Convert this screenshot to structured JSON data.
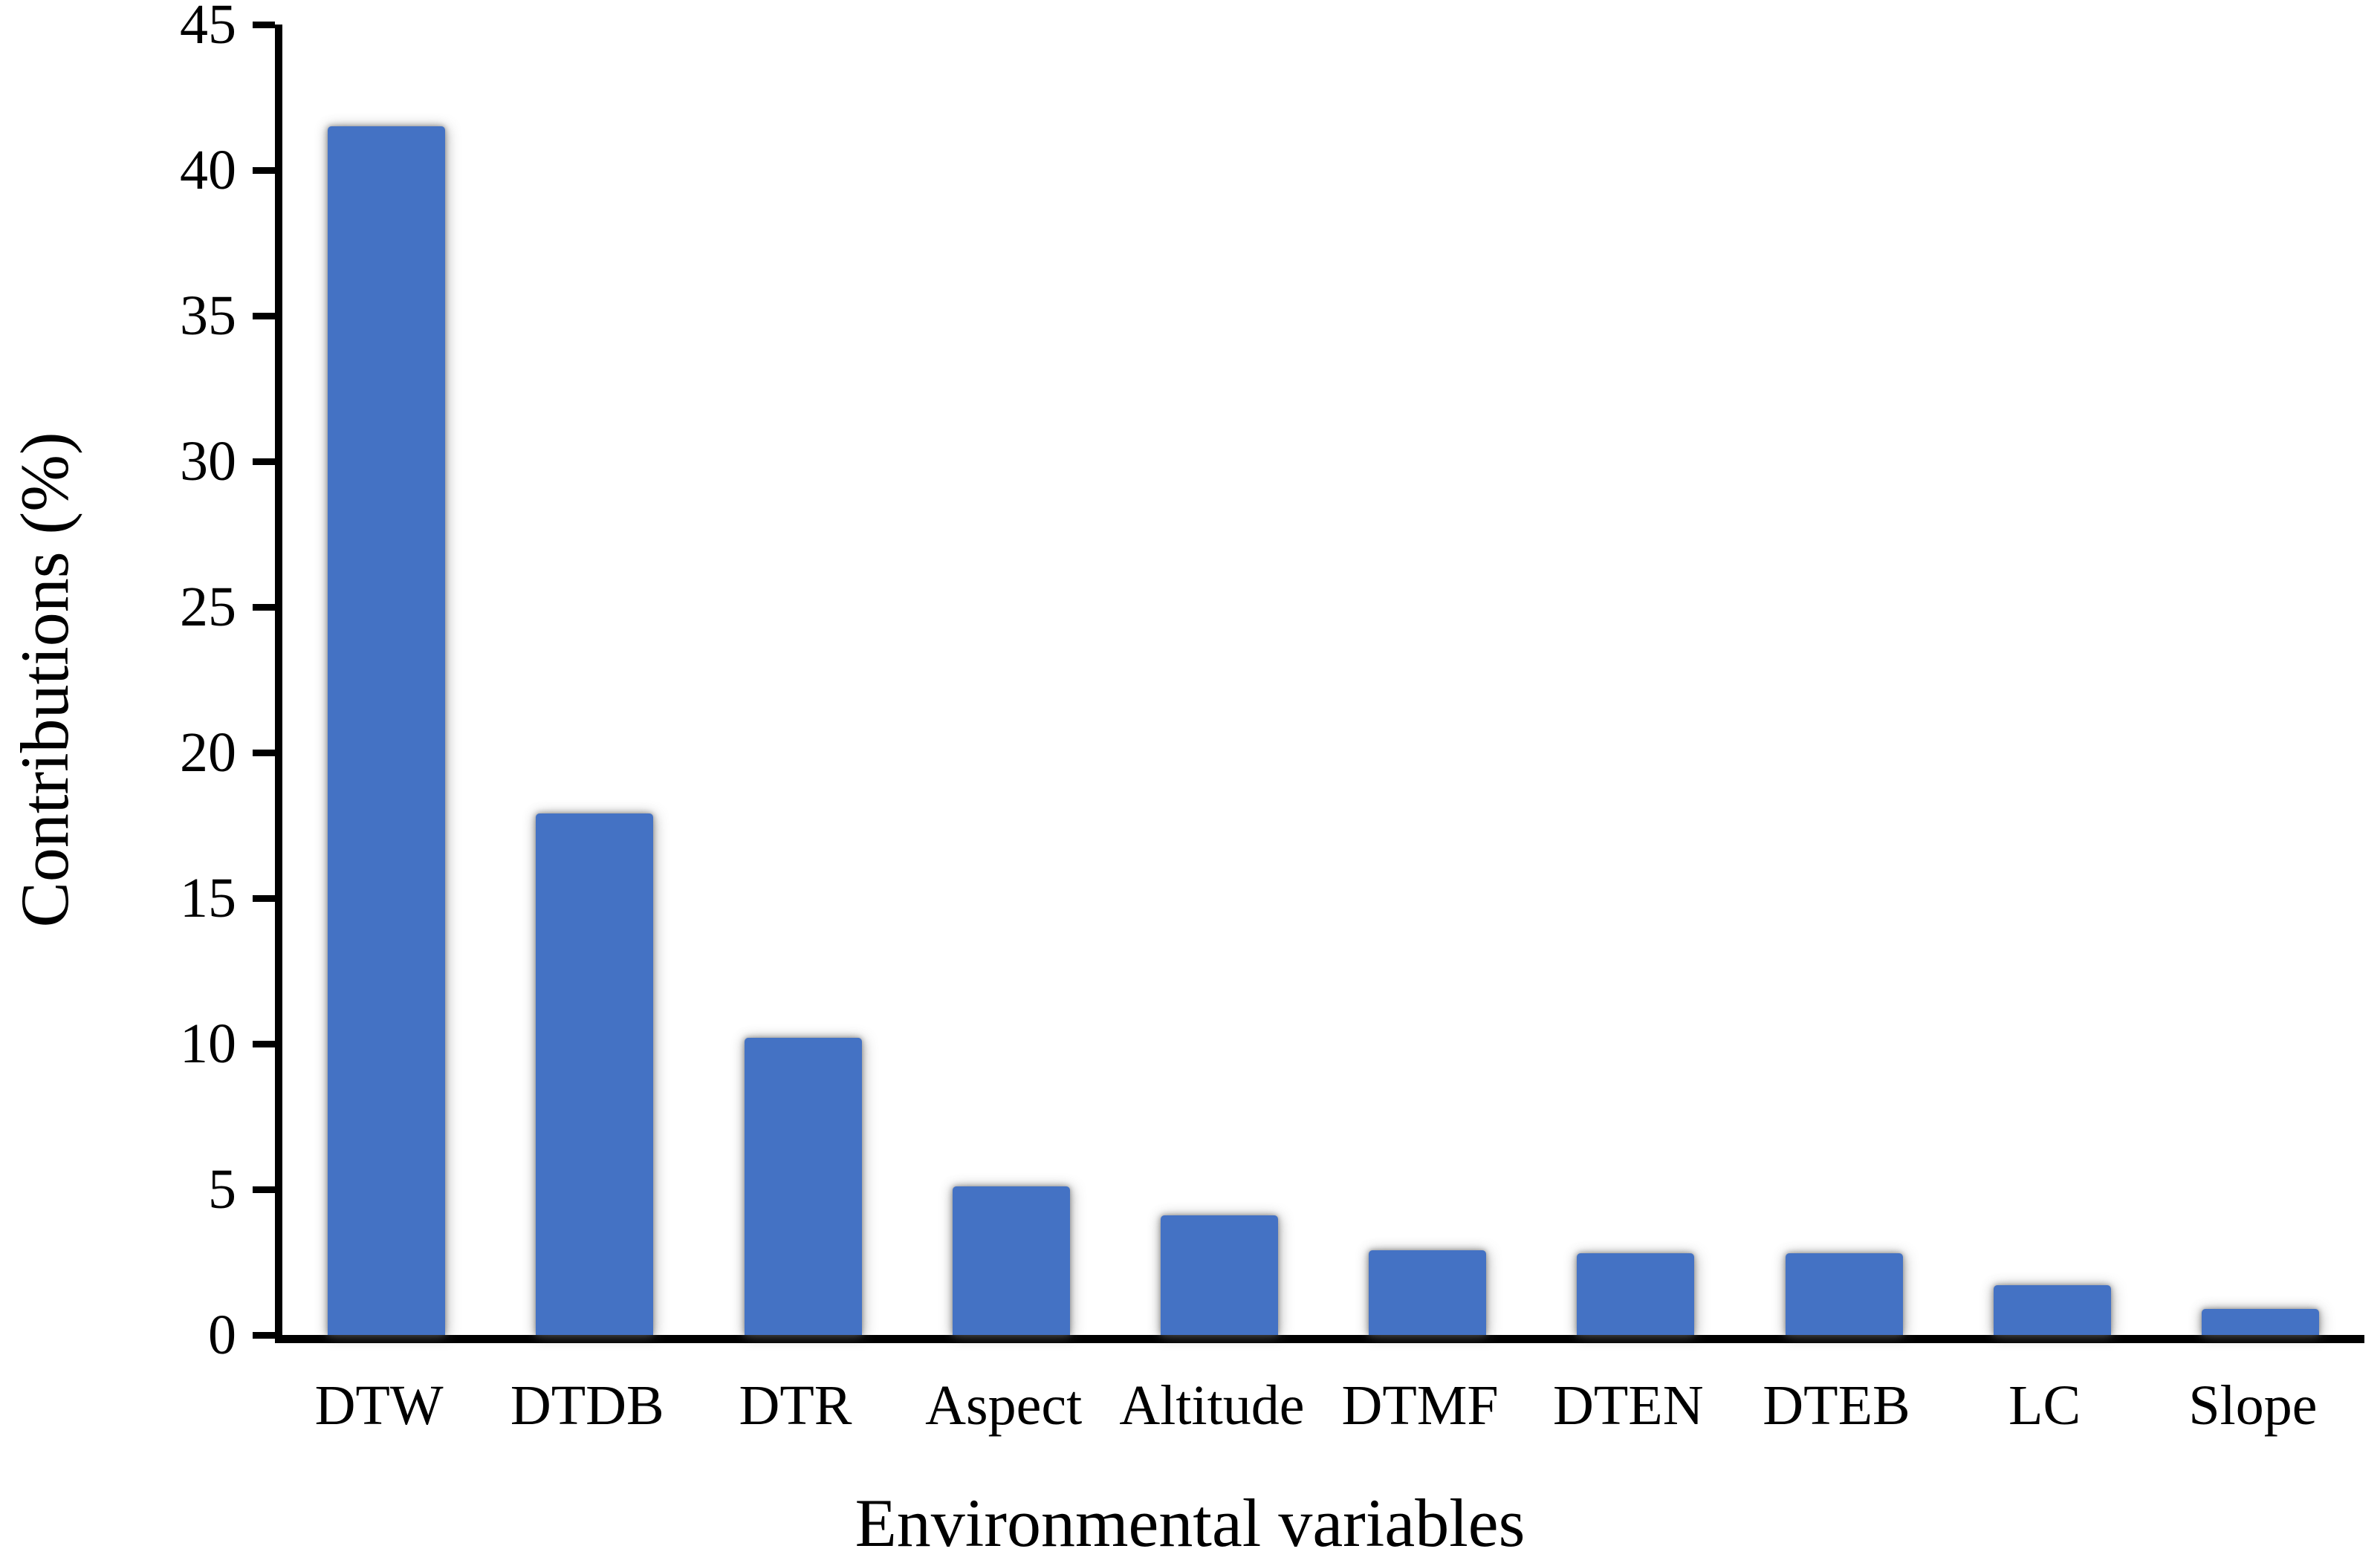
{
  "chart_data": {
    "type": "bar",
    "title": "",
    "categories": [
      "DTW",
      "DTDB",
      "DTR",
      "Aspect",
      "Altitude",
      "DTMF",
      "DTEN",
      "DTEB",
      "LC",
      "Slope"
    ],
    "values": [
      41.5,
      17.9,
      10.2,
      5.1,
      4.1,
      2.9,
      2.8,
      2.8,
      1.7,
      0.9
    ],
    "series_name": "Contributions",
    "xlabel": "Environmental variables",
    "ylabel": "Contributions (%)",
    "ylim": [
      0,
      45
    ],
    "yticks": [
      0,
      5,
      10,
      15,
      20,
      25,
      30,
      35,
      40,
      45
    ],
    "grid": false,
    "legend_position": "none",
    "bar_color": "#4472C4",
    "axis_color": "#000000",
    "background_color": "#ffffff"
  }
}
